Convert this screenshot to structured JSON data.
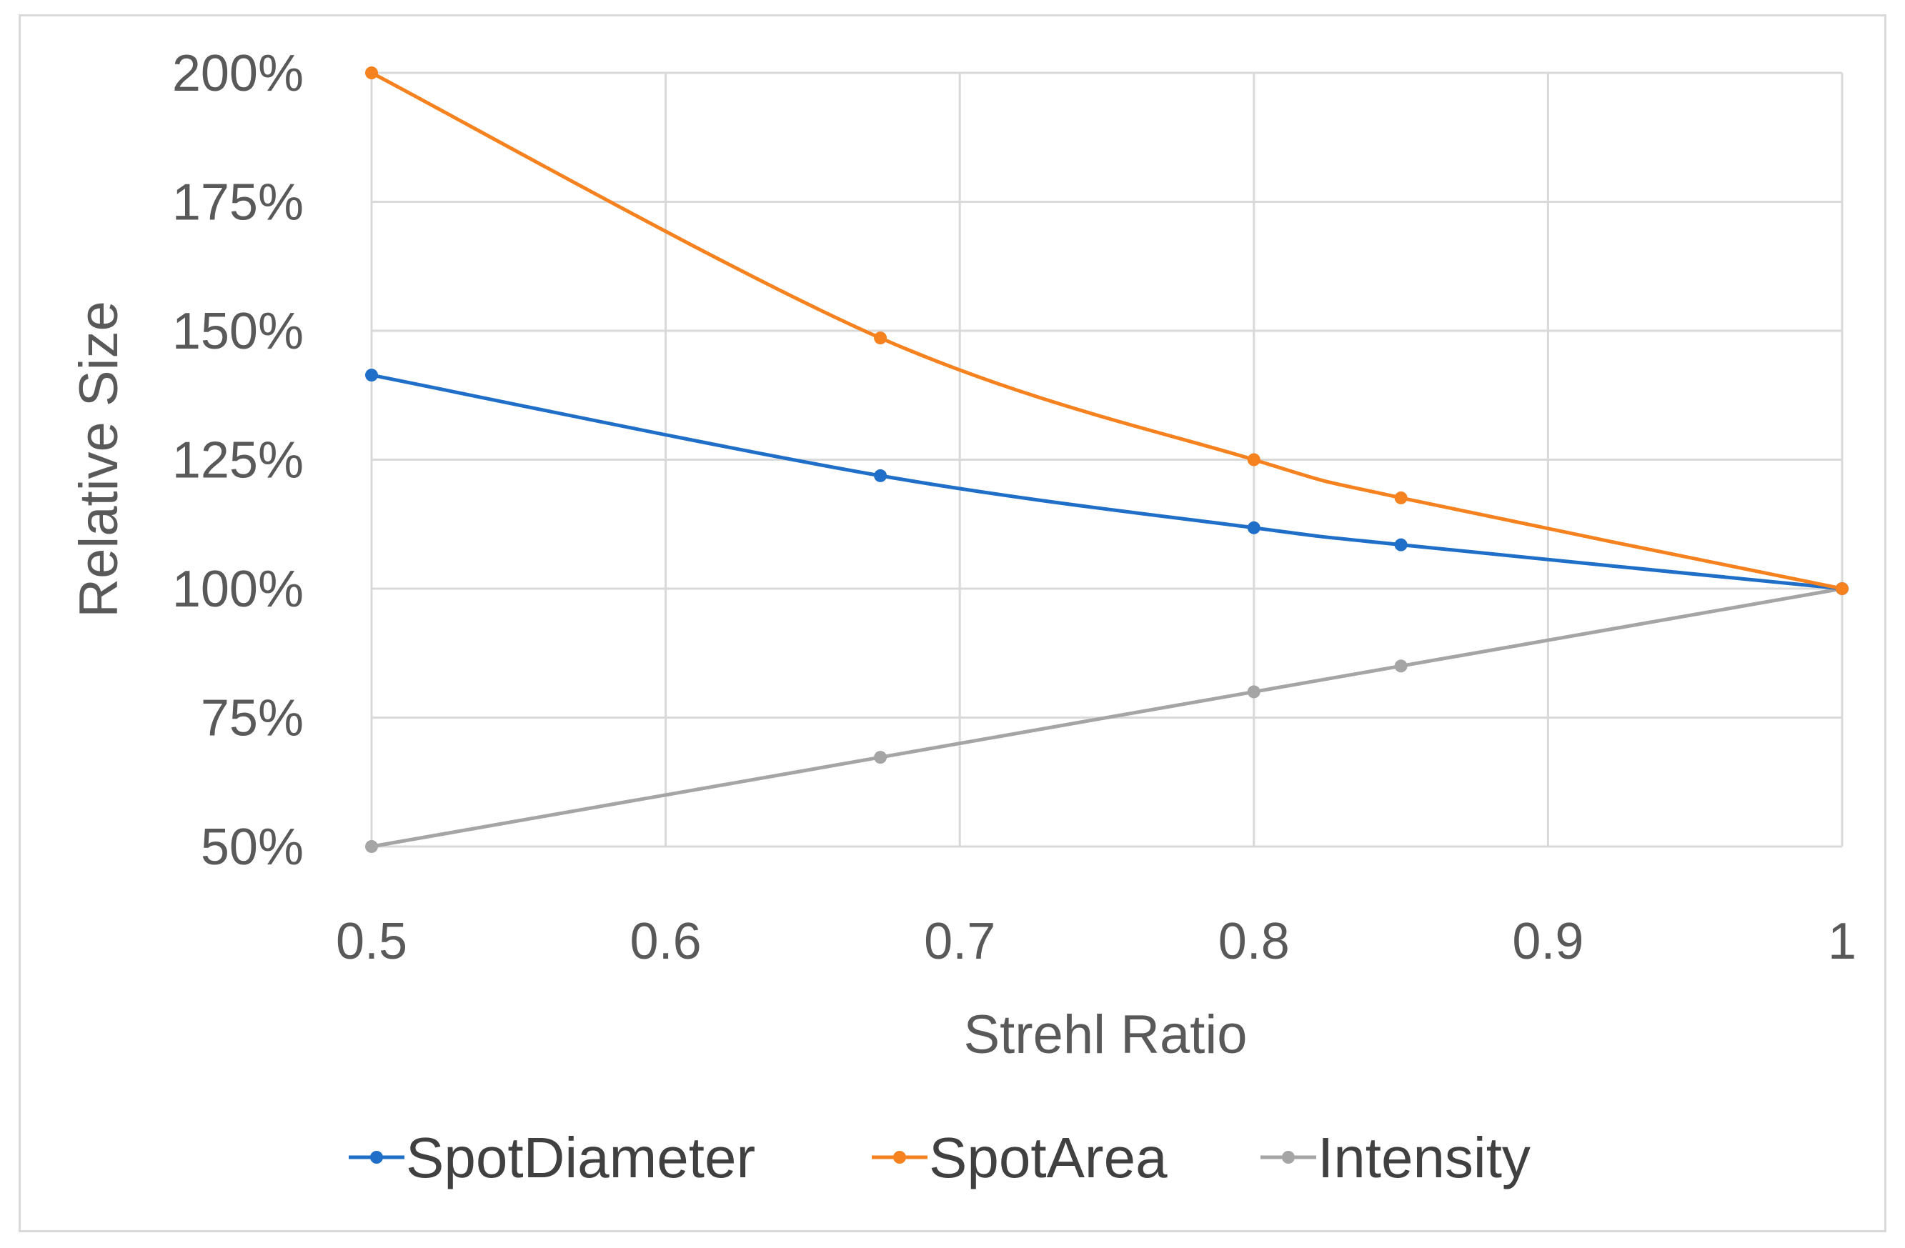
{
  "chart_data": {
    "type": "line",
    "title": "",
    "xlabel": "Strehl Ratio",
    "ylabel": "Relative Size",
    "xlim": [
      0.5,
      1
    ],
    "ylim": [
      0.5,
      2.0
    ],
    "x_ticks": [
      {
        "value": 0.5,
        "label": "0.5"
      },
      {
        "value": 0.6,
        "label": "0.6"
      },
      {
        "value": 0.7,
        "label": "0.7"
      },
      {
        "value": 0.8,
        "label": "0.8"
      },
      {
        "value": 0.9,
        "label": "0.9"
      },
      {
        "value": 1.0,
        "label": "1"
      }
    ],
    "y_ticks": [
      {
        "value": 2.0,
        "label": "200%"
      },
      {
        "value": 1.75,
        "label": "175%"
      },
      {
        "value": 1.5,
        "label": "150%"
      },
      {
        "value": 1.25,
        "label": "125%"
      },
      {
        "value": 1.0,
        "label": "100%"
      },
      {
        "value": 0.75,
        "label": "75%"
      },
      {
        "value": 0.5,
        "label": "50%"
      }
    ],
    "grid": true,
    "legend_position": "bottom",
    "x": [
      0.5,
      0.673,
      0.8,
      0.85,
      1.0
    ],
    "series": [
      {
        "name": "SpotDiameter",
        "color": "#1f6fc9",
        "values": [
          1.414,
          1.219,
          1.118,
          1.085,
          1.0
        ]
      },
      {
        "name": "SpotArea",
        "color": "#f5821f",
        "values": [
          2.0,
          1.486,
          1.25,
          1.176,
          1.0
        ]
      },
      {
        "name": "Intensity",
        "color": "#a5a5a5",
        "values": [
          0.5,
          0.673,
          0.8,
          0.85,
          1.0
        ]
      }
    ]
  }
}
